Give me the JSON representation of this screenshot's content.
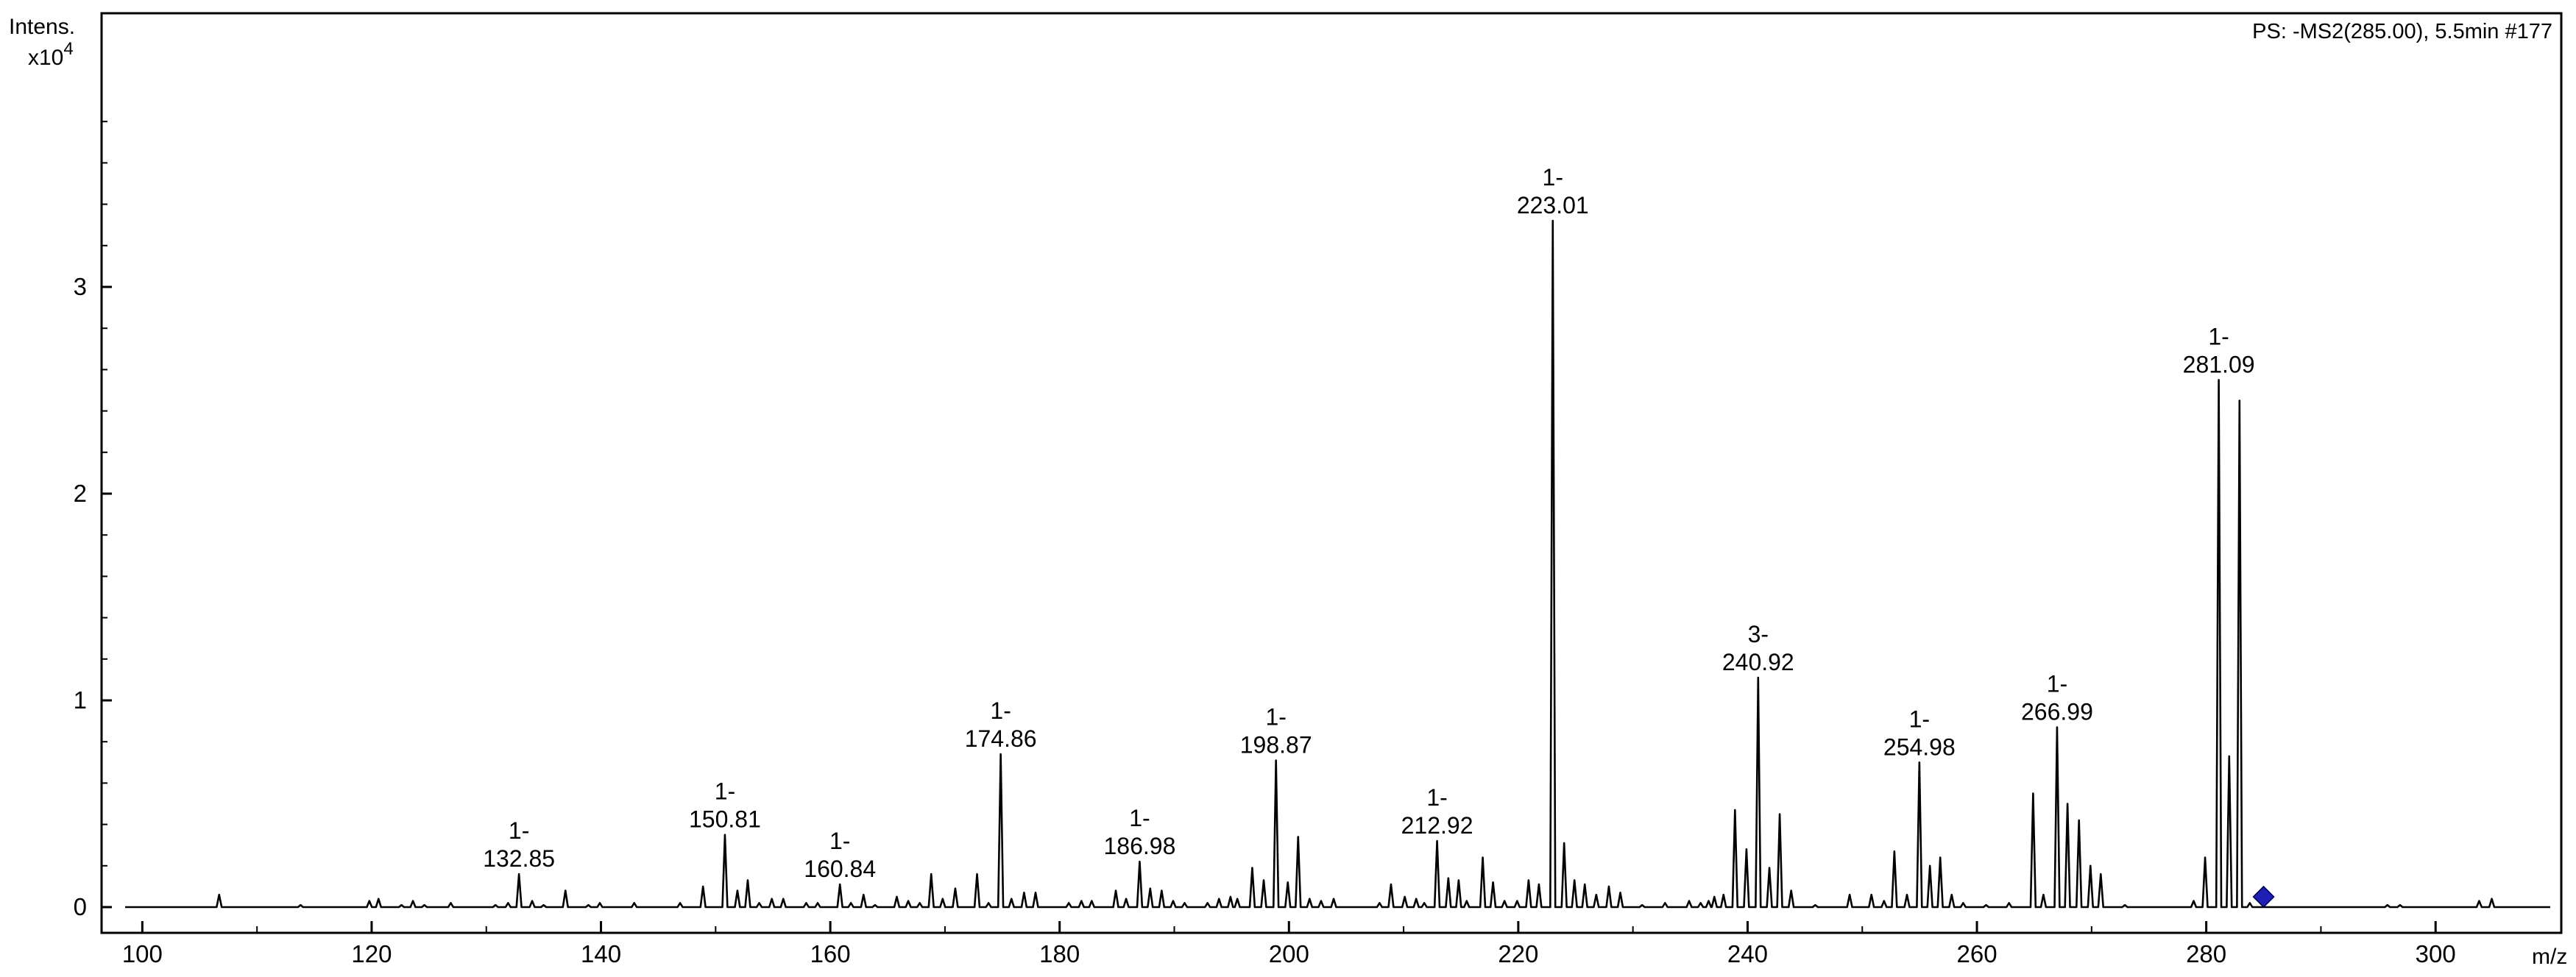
{
  "chart_data": {
    "type": "line",
    "title": "",
    "scan_info": "PS: -MS2(285.00), 5.5min #177",
    "y_axis_title_line1": "Intens.",
    "y_axis_title_line2_base": "x10",
    "y_axis_title_line2_exp": "4",
    "x_axis_title": "m/z",
    "xlim": [
      98.5,
      310
    ],
    "ylim": [
      -0.05,
      4.3
    ],
    "x_ticks": [
      100,
      120,
      140,
      160,
      180,
      200,
      220,
      240,
      260,
      280,
      300
    ],
    "x_tick_labels": [
      "100",
      "120",
      "140",
      "160",
      "180",
      "200",
      "220",
      "240",
      "260",
      "280",
      "300"
    ],
    "y_ticks": [
      0,
      1,
      2,
      3
    ],
    "y_tick_labels": [
      "0",
      "1",
      "2",
      "3"
    ],
    "grid": false,
    "legend": "none",
    "precursor_marker": {
      "mz": 285.0,
      "intensity": 0.05,
      "color": "#1f1fb4",
      "shape": "diamond"
    },
    "series": [
      {
        "peaks": [
          [
            106.7,
            0.06
          ],
          [
            113.8,
            0.01
          ],
          [
            119.8,
            0.03
          ],
          [
            120.6,
            0.04
          ],
          [
            122.6,
            0.01
          ],
          [
            123.6,
            0.03
          ],
          [
            124.6,
            0.01
          ],
          [
            126.9,
            0.02
          ],
          [
            130.8,
            0.01
          ],
          [
            131.9,
            0.02
          ],
          [
            132.85,
            0.16
          ],
          [
            134.0,
            0.03
          ],
          [
            135.0,
            0.01
          ],
          [
            136.9,
            0.08
          ],
          [
            138.9,
            0.01
          ],
          [
            139.9,
            0.02
          ],
          [
            142.9,
            0.02
          ],
          [
            146.9,
            0.02
          ],
          [
            148.9,
            0.1
          ],
          [
            150.81,
            0.35
          ],
          [
            151.9,
            0.08
          ],
          [
            152.8,
            0.13
          ],
          [
            153.8,
            0.02
          ],
          [
            154.9,
            0.04
          ],
          [
            155.9,
            0.04
          ],
          [
            157.9,
            0.02
          ],
          [
            158.9,
            0.02
          ],
          [
            160.84,
            0.11
          ],
          [
            161.8,
            0.02
          ],
          [
            162.9,
            0.06
          ],
          [
            163.9,
            0.01
          ],
          [
            165.8,
            0.05
          ],
          [
            166.8,
            0.03
          ],
          [
            167.8,
            0.02
          ],
          [
            168.8,
            0.16
          ],
          [
            169.8,
            0.04
          ],
          [
            170.9,
            0.09
          ],
          [
            172.8,
            0.16
          ],
          [
            173.8,
            0.02
          ],
          [
            174.86,
            0.74
          ],
          [
            175.8,
            0.04
          ],
          [
            176.9,
            0.07
          ],
          [
            177.9,
            0.07
          ],
          [
            180.8,
            0.02
          ],
          [
            181.9,
            0.03
          ],
          [
            182.8,
            0.03
          ],
          [
            184.9,
            0.08
          ],
          [
            185.8,
            0.04
          ],
          [
            186.98,
            0.22
          ],
          [
            187.9,
            0.09
          ],
          [
            188.9,
            0.08
          ],
          [
            189.9,
            0.03
          ],
          [
            190.9,
            0.02
          ],
          [
            192.9,
            0.02
          ],
          [
            193.9,
            0.04
          ],
          [
            194.9,
            0.05
          ],
          [
            195.5,
            0.04
          ],
          [
            196.8,
            0.19
          ],
          [
            197.8,
            0.13
          ],
          [
            198.87,
            0.71
          ],
          [
            199.9,
            0.12
          ],
          [
            200.8,
            0.34
          ],
          [
            201.8,
            0.04
          ],
          [
            202.8,
            0.03
          ],
          [
            203.9,
            0.04
          ],
          [
            207.9,
            0.02
          ],
          [
            208.9,
            0.11
          ],
          [
            210.1,
            0.05
          ],
          [
            211.1,
            0.04
          ],
          [
            211.8,
            0.02
          ],
          [
            212.92,
            0.32
          ],
          [
            213.9,
            0.14
          ],
          [
            214.8,
            0.13
          ],
          [
            215.5,
            0.03
          ],
          [
            216.9,
            0.24
          ],
          [
            217.8,
            0.12
          ],
          [
            218.8,
            0.03
          ],
          [
            219.9,
            0.03
          ],
          [
            220.9,
            0.13
          ],
          [
            221.8,
            0.11
          ],
          [
            223.01,
            3.32
          ],
          [
            224.0,
            0.31
          ],
          [
            224.9,
            0.13
          ],
          [
            225.8,
            0.11
          ],
          [
            226.8,
            0.06
          ],
          [
            227.9,
            0.1
          ],
          [
            228.9,
            0.07
          ],
          [
            230.8,
            0.01
          ],
          [
            232.8,
            0.02
          ],
          [
            234.9,
            0.03
          ],
          [
            235.9,
            0.02
          ],
          [
            236.6,
            0.03
          ],
          [
            237.1,
            0.05
          ],
          [
            237.9,
            0.06
          ],
          [
            238.9,
            0.47
          ],
          [
            239.9,
            0.28
          ],
          [
            240.92,
            1.11
          ],
          [
            241.9,
            0.19
          ],
          [
            242.8,
            0.45
          ],
          [
            243.8,
            0.08
          ],
          [
            245.9,
            0.01
          ],
          [
            248.9,
            0.06
          ],
          [
            250.8,
            0.06
          ],
          [
            251.9,
            0.03
          ],
          [
            252.8,
            0.27
          ],
          [
            253.9,
            0.06
          ],
          [
            254.98,
            0.7
          ],
          [
            255.9,
            0.2
          ],
          [
            256.8,
            0.24
          ],
          [
            257.8,
            0.06
          ],
          [
            258.8,
            0.02
          ],
          [
            260.8,
            0.01
          ],
          [
            262.8,
            0.02
          ],
          [
            264.9,
            0.55
          ],
          [
            265.8,
            0.06
          ],
          [
            266.99,
            0.87
          ],
          [
            267.9,
            0.5
          ],
          [
            268.9,
            0.42
          ],
          [
            269.9,
            0.2
          ],
          [
            270.8,
            0.16
          ],
          [
            272.9,
            0.01
          ],
          [
            278.9,
            0.03
          ],
          [
            279.9,
            0.24
          ],
          [
            281.09,
            2.55
          ],
          [
            282.0,
            0.73
          ],
          [
            282.9,
            2.45
          ],
          [
            283.8,
            0.02
          ],
          [
            295.8,
            0.01
          ],
          [
            296.9,
            0.01
          ],
          [
            303.8,
            0.03
          ],
          [
            304.9,
            0.04
          ]
        ]
      }
    ],
    "annotations": [
      {
        "mz": 132.85,
        "intensity": 0.16,
        "line1": "1-",
        "line2": "132.85"
      },
      {
        "mz": 150.81,
        "intensity": 0.35,
        "line1": "1-",
        "line2": "150.81"
      },
      {
        "mz": 160.84,
        "intensity": 0.11,
        "line1": "1-",
        "line2": "160.84"
      },
      {
        "mz": 174.86,
        "intensity": 0.74,
        "line1": "1-",
        "line2": "174.86"
      },
      {
        "mz": 186.98,
        "intensity": 0.22,
        "line1": "1-",
        "line2": "186.98"
      },
      {
        "mz": 198.87,
        "intensity": 0.71,
        "line1": "1-",
        "line2": "198.87"
      },
      {
        "mz": 212.92,
        "intensity": 0.32,
        "line1": "1-",
        "line2": "212.92"
      },
      {
        "mz": 223.01,
        "intensity": 3.32,
        "line1": "1-",
        "line2": "223.01"
      },
      {
        "mz": 240.92,
        "intensity": 1.11,
        "line1": "3-",
        "line2": "240.92"
      },
      {
        "mz": 254.98,
        "intensity": 0.7,
        "line1": "1-",
        "line2": "254.98"
      },
      {
        "mz": 266.99,
        "intensity": 0.87,
        "line1": "1-",
        "line2": "266.99"
      },
      {
        "mz": 281.09,
        "intensity": 2.55,
        "line1": "1-",
        "line2": "281.09"
      }
    ]
  }
}
